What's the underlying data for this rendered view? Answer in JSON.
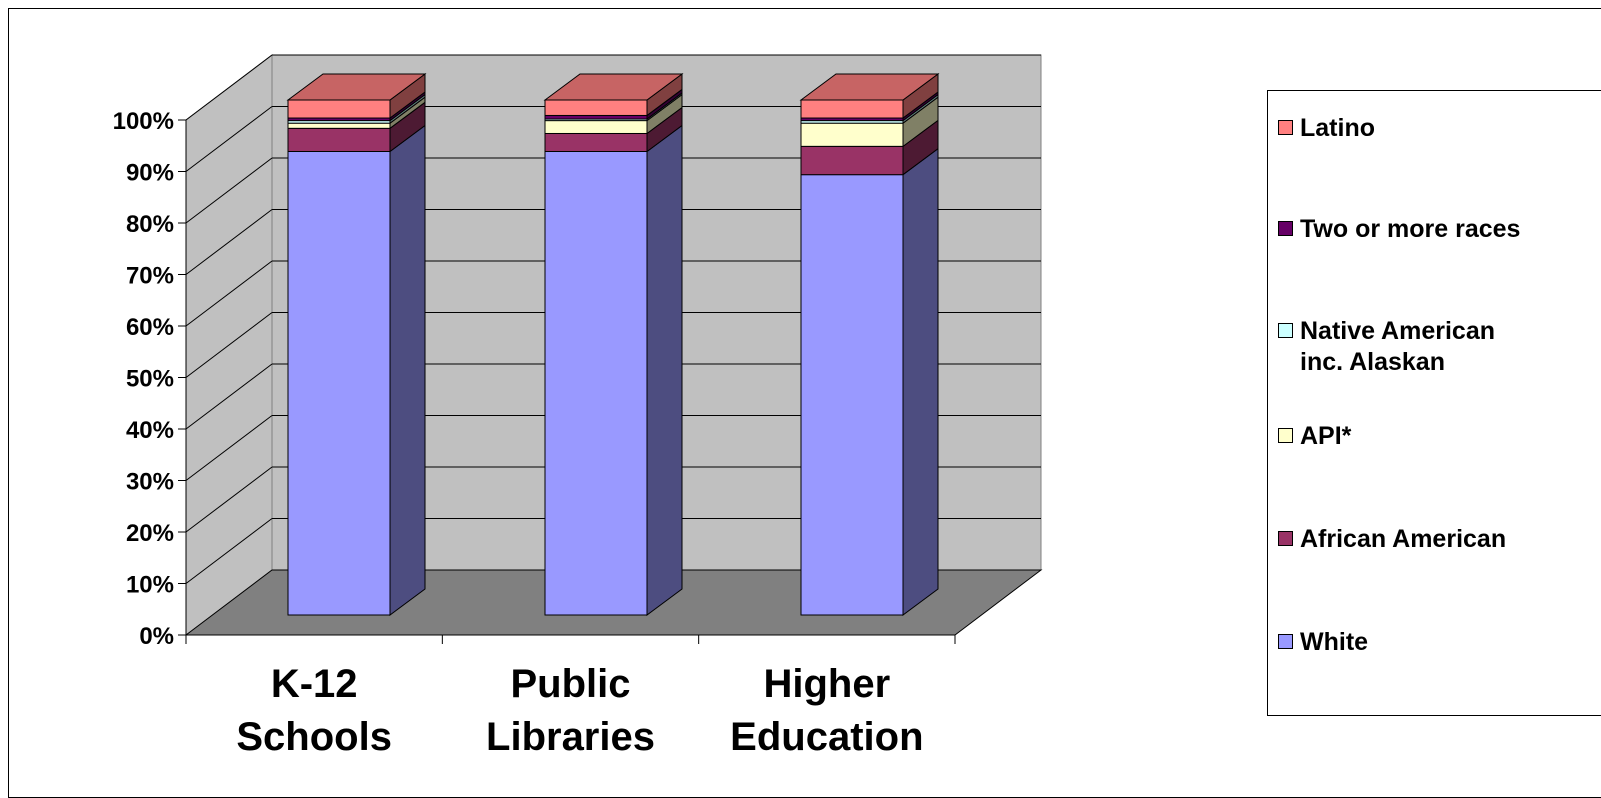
{
  "chart_data": {
    "type": "bar",
    "stacked": true,
    "three_d": true,
    "percent_stacked": true,
    "categories": [
      "K-12\nSchools",
      "Public\nLibraries",
      "Higher\nEducation"
    ],
    "series": [
      {
        "name": "White",
        "color": "#9999FF",
        "values": [
          90,
          90,
          85.5
        ]
      },
      {
        "name": "African American",
        "color": "#993366",
        "values": [
          4.5,
          3.5,
          5.5
        ]
      },
      {
        "name": "API*",
        "color": "#FFFFCC",
        "values": [
          1,
          2.5,
          4.5
        ]
      },
      {
        "name": "Native American\ninc. Alaskan",
        "color": "#CCFFFF",
        "values": [
          0.5,
          0.3,
          0.5
        ]
      },
      {
        "name": "Two or more races",
        "color": "#660066",
        "values": [
          0.5,
          0.7,
          0.5
        ]
      },
      {
        "name": "Latino",
        "color": "#FF8080",
        "values": [
          3.5,
          3,
          3.5
        ]
      }
    ],
    "yticks": [
      "0%",
      "10%",
      "20%",
      "30%",
      "40%",
      "50%",
      "60%",
      "70%",
      "80%",
      "90%",
      "100%"
    ],
    "ylim": [
      0,
      100
    ],
    "grid": true,
    "legend_position": "right",
    "wall_color": "#C0C0C0",
    "floor_color": "#808080",
    "title": "",
    "xlabel": "",
    "ylabel": ""
  },
  "legend": {
    "items": [
      {
        "label": "Latino",
        "color": "#FF8080"
      },
      {
        "label": "Two or more races",
        "color": "#660066"
      },
      {
        "label": "Native American\ninc. Alaskan",
        "color": "#CCFFFF"
      },
      {
        "label": "API*",
        "color": "#FFFFCC"
      },
      {
        "label": "African American",
        "color": "#993366"
      },
      {
        "label": "White",
        "color": "#9999FF"
      }
    ]
  }
}
